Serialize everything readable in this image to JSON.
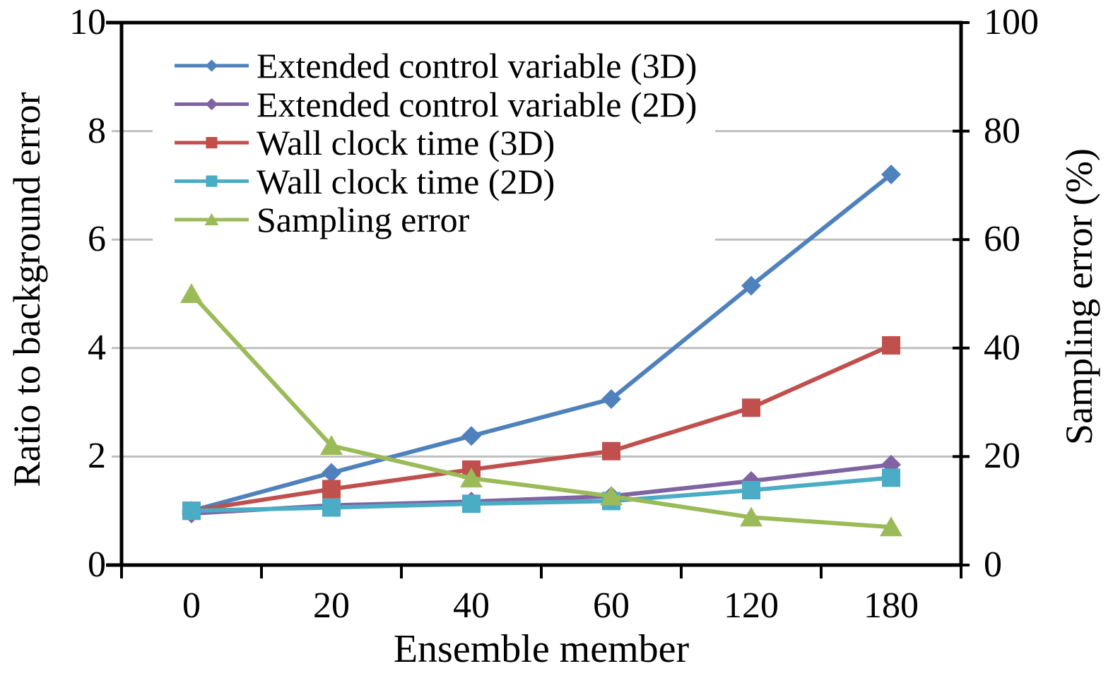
{
  "chart_data": {
    "type": "line",
    "title": "",
    "xlabel": "Ensemble member",
    "ylabel_left": "Ratio to background error",
    "ylabel_right": "Sampling error (%)",
    "categories": [
      "0",
      "20",
      "40",
      "60",
      "120",
      "180"
    ],
    "left_axis": {
      "min": 0,
      "max": 10,
      "gridline_values": [
        2,
        4,
        6,
        8
      ]
    },
    "right_axis": {
      "min": 0,
      "max": 100,
      "tick_step": 20
    },
    "left_tick_labels": [
      "10",
      "8",
      "6",
      "4",
      "2",
      "0"
    ],
    "right_tick_labels": [
      "100",
      "80",
      "60",
      "40",
      "20",
      "0"
    ],
    "grid": "horizontal",
    "legend_position": "top-left-inside",
    "series": [
      {
        "name": "Extended control variable (3D)",
        "axis": "left",
        "marker": "diamond",
        "color": "#4F81BD",
        "values": [
          1.0,
          1.7,
          2.38,
          3.06,
          5.15,
          7.2
        ]
      },
      {
        "name": "Extended control variable (2D)",
        "axis": "left",
        "marker": "diamond",
        "color": "#8064A2",
        "values": [
          0.95,
          1.1,
          1.17,
          1.27,
          1.55,
          1.85
        ]
      },
      {
        "name": "Wall clock time (3D)",
        "axis": "left",
        "marker": "square",
        "color": "#C0504D",
        "values": [
          1.0,
          1.4,
          1.76,
          2.1,
          2.9,
          4.05
        ]
      },
      {
        "name": "Wall clock time (2D)",
        "axis": "left",
        "marker": "square",
        "color": "#4BACC6",
        "values": [
          1.0,
          1.06,
          1.13,
          1.18,
          1.38,
          1.61
        ]
      },
      {
        "name": "Sampling error",
        "axis": "right",
        "marker": "triangle",
        "color": "#9BBB59",
        "values": [
          50,
          22,
          16,
          12.7,
          8.8,
          7.0
        ]
      }
    ],
    "colors": {
      "gridline": "#BFBFBF",
      "axis": "#000000",
      "background": "#FFFFFF"
    }
  }
}
